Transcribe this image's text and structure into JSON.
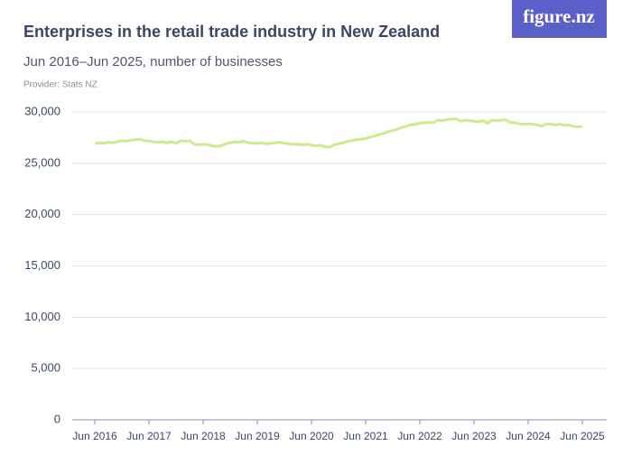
{
  "chart_data": {
    "type": "line",
    "title": "Enterprises in the retail trade industry in New Zealand",
    "subtitle": "Jun 2016–Jun 2025, number of businesses",
    "provider": "Provider: Stats NZ",
    "brand": "figure.nz",
    "categories": [
      "Jun 2016",
      null,
      null,
      null,
      null,
      null,
      null,
      null,
      null,
      null,
      null,
      null,
      "Jun 2017",
      null,
      null,
      null,
      null,
      null,
      null,
      null,
      null,
      null,
      null,
      null,
      "Jun 2018",
      null,
      null,
      null,
      null,
      null,
      null,
      null,
      null,
      null,
      null,
      null,
      "Jun 2019",
      null,
      null,
      null,
      null,
      null,
      null,
      null,
      null,
      null,
      null,
      null,
      "Jun 2020",
      null,
      null,
      null,
      null,
      null,
      null,
      null,
      null,
      null,
      null,
      null,
      "Jun 2021",
      null,
      null,
      null,
      null,
      null,
      null,
      null,
      null,
      null,
      null,
      null,
      "Jun 2022",
      null,
      null,
      null,
      null,
      null,
      null,
      null,
      null,
      null,
      null,
      null,
      "Jun 2023",
      null,
      null,
      null,
      null,
      null,
      null,
      null,
      null,
      null,
      null,
      null,
      "Jun 2024",
      null,
      null,
      null,
      null,
      null,
      null,
      null,
      null,
      null,
      null,
      null,
      "Jun 2025"
    ],
    "series": [
      {
        "color": "#cdeb8b",
        "values": [
          26900,
          27000,
          26950,
          27050,
          27000,
          27100,
          27200,
          27150,
          27250,
          27300,
          27350,
          27200,
          27150,
          27100,
          27050,
          27100,
          27000,
          27100,
          26950,
          27200,
          27150,
          27200,
          26850,
          26800,
          26850,
          26800,
          26700,
          26650,
          26700,
          26900,
          27000,
          27100,
          27050,
          27150,
          27000,
          26950,
          26950,
          27000,
          26900,
          26950,
          27000,
          27050,
          26950,
          26900,
          26850,
          26850,
          26800,
          26850,
          26750,
          26700,
          26750,
          26600,
          26550,
          26800,
          26900,
          27000,
          27150,
          27200,
          27300,
          27350,
          27400,
          27550,
          27650,
          27800,
          27900,
          28100,
          28200,
          28300,
          28500,
          28600,
          28750,
          28800,
          28900,
          28950,
          29000,
          28950,
          29200,
          29150,
          29250,
          29300,
          29350,
          29100,
          29200,
          29150,
          29100,
          29050,
          29150,
          28900,
          29200,
          29150,
          29200,
          29250,
          29000,
          28950,
          28850,
          28800,
          28850,
          28800,
          28750,
          28600,
          28850,
          28800,
          28750,
          28800,
          28700,
          28750,
          28600,
          28550,
          28600
        ]
      }
    ],
    "ylim": [
      0,
      30000
    ],
    "yticks": [
      0,
      {
        "value": 5000,
        "label": "5,000"
      },
      {
        "value": 10000,
        "label": "10,000"
      },
      {
        "value": 15000,
        "label": "15,000"
      },
      {
        "value": 20000,
        "label": "20,000"
      },
      {
        "value": 25000,
        "label": "25,000"
      },
      {
        "value": 30000,
        "label": "30,000"
      }
    ],
    "grid": true
  }
}
